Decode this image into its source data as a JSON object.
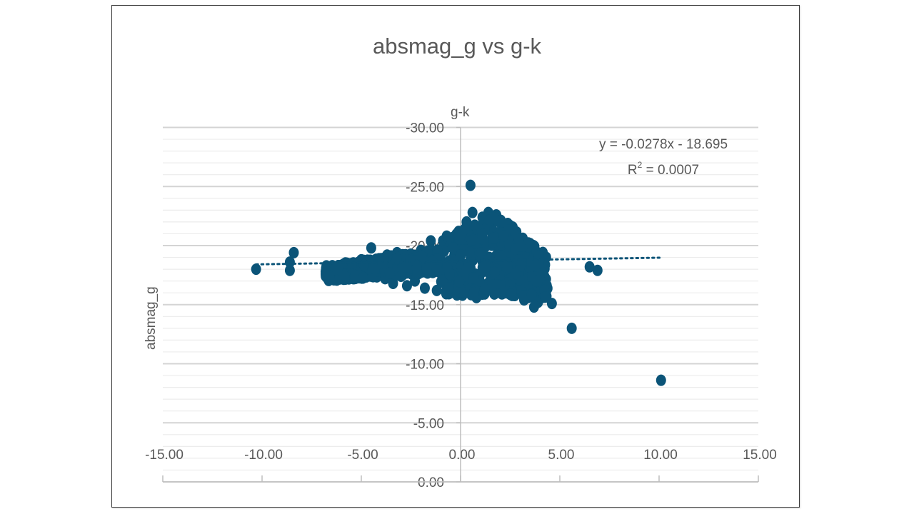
{
  "chart_data": {
    "type": "scatter",
    "title": "absmag_g vs g-k",
    "xlabel": "g-k",
    "ylabel": "absmag_g",
    "xlim": [
      -15,
      15
    ],
    "ylim": [
      0,
      -30
    ],
    "y_axis_reversed": true,
    "grid": {
      "major": true,
      "minor": true,
      "horizontal_only": true
    },
    "x_ticks": [
      "-15.00",
      "-10.00",
      "-5.00",
      "0.00",
      "5.00",
      "10.00",
      "15.00"
    ],
    "x_tick_values": [
      -15,
      -10,
      -5,
      0,
      5,
      10,
      15
    ],
    "y_ticks": [
      "-30.00",
      "-25.00",
      "-20.00",
      "-15.00",
      "-10.00",
      "-5.00",
      "0.00"
    ],
    "y_tick_values": [
      -30,
      -25,
      -20,
      -15,
      -10,
      -5,
      0
    ],
    "marker_color": "#0b5478",
    "trendline": {
      "type": "linear",
      "style": "dotted",
      "equation": "y = -0.0278x - 18.695",
      "r_squared_label": "R",
      "r_squared_sup": "2",
      "r_squared_value": " = 0.0007",
      "slope": -0.0278,
      "intercept": -18.695,
      "x_range": [
        -10.3,
        10.1
      ]
    },
    "series": [
      {
        "name": "absmag_g",
        "points": [
          [
            -10.3,
            -18.0
          ],
          [
            -8.6,
            -18.6
          ],
          [
            -8.6,
            -17.9
          ],
          [
            -8.4,
            -19.4
          ],
          [
            -6.8,
            -17.8
          ],
          [
            -6.5,
            -18.0
          ],
          [
            -6.2,
            -18.1
          ],
          [
            -6.0,
            -18.3
          ],
          [
            -5.7,
            -18.2
          ],
          [
            -5.4,
            -18.4
          ],
          [
            -5.2,
            -17.6
          ],
          [
            -5.0,
            -18.8
          ],
          [
            -4.8,
            -17.5
          ],
          [
            -4.6,
            -18.6
          ],
          [
            -4.5,
            -19.8
          ],
          [
            -4.2,
            -17.8
          ],
          [
            -4.0,
            -18.9
          ],
          [
            -3.8,
            -17.2
          ],
          [
            -3.7,
            -19.2
          ],
          [
            -3.5,
            -18.0
          ],
          [
            -3.4,
            -16.8
          ],
          [
            -3.2,
            -19.4
          ],
          [
            -3.0,
            -17.4
          ],
          [
            -2.8,
            -18.5
          ],
          [
            -2.7,
            -16.6
          ],
          [
            -2.5,
            -19.0
          ],
          [
            -2.3,
            -17.0
          ],
          [
            -2.2,
            -18.2
          ],
          [
            -2.0,
            -19.6
          ],
          [
            -1.8,
            -16.4
          ],
          [
            -1.7,
            -17.8
          ],
          [
            -1.5,
            -20.4
          ],
          [
            -1.4,
            -18.8
          ],
          [
            -1.2,
            -16.2
          ],
          [
            -1.0,
            -19.2
          ],
          [
            -0.9,
            -17.4
          ],
          [
            -0.7,
            -20.8
          ],
          [
            -0.6,
            -18.0
          ],
          [
            -0.5,
            -16.0
          ],
          [
            -0.3,
            -19.8
          ],
          [
            -0.2,
            -17.0
          ],
          [
            -0.1,
            -21.2
          ],
          [
            0.1,
            -15.8
          ],
          [
            0.2,
            -18.4
          ],
          [
            0.3,
            -22.0
          ],
          [
            0.4,
            -20.0
          ],
          [
            0.5,
            -25.1
          ],
          [
            0.5,
            -16.6
          ],
          [
            0.6,
            -22.8
          ],
          [
            0.7,
            -19.0
          ],
          [
            0.8,
            -15.6
          ],
          [
            0.9,
            -21.6
          ],
          [
            1.0,
            -17.6
          ],
          [
            1.1,
            -22.4
          ],
          [
            1.2,
            -20.4
          ],
          [
            1.3,
            -16.2
          ],
          [
            1.4,
            -22.8
          ],
          [
            1.5,
            -18.6
          ],
          [
            1.6,
            -21.0
          ],
          [
            1.7,
            -15.9
          ],
          [
            1.8,
            -22.6
          ],
          [
            1.9,
            -19.6
          ],
          [
            2.0,
            -17.0
          ],
          [
            2.1,
            -21.8
          ],
          [
            2.2,
            -18.2
          ],
          [
            2.3,
            -16.0
          ],
          [
            2.4,
            -20.2
          ],
          [
            2.5,
            -17.6
          ],
          [
            2.7,
            -19.0
          ],
          [
            2.8,
            -16.4
          ],
          [
            3.0,
            -18.4
          ],
          [
            3.1,
            -17.0
          ],
          [
            3.2,
            -15.4
          ],
          [
            3.3,
            -20.1
          ],
          [
            3.4,
            -19.2
          ],
          [
            3.5,
            -16.8
          ],
          [
            3.6,
            -18.0
          ],
          [
            3.7,
            -14.8
          ],
          [
            3.8,
            -17.4
          ],
          [
            3.9,
            -15.2
          ],
          [
            4.0,
            -16.4
          ],
          [
            4.1,
            -17.9
          ],
          [
            4.2,
            -16.0
          ],
          [
            4.6,
            -15.1
          ],
          [
            5.6,
            -13.0
          ],
          [
            6.5,
            -18.2
          ],
          [
            6.9,
            -17.9
          ],
          [
            10.1,
            -8.6
          ]
        ]
      }
    ]
  }
}
